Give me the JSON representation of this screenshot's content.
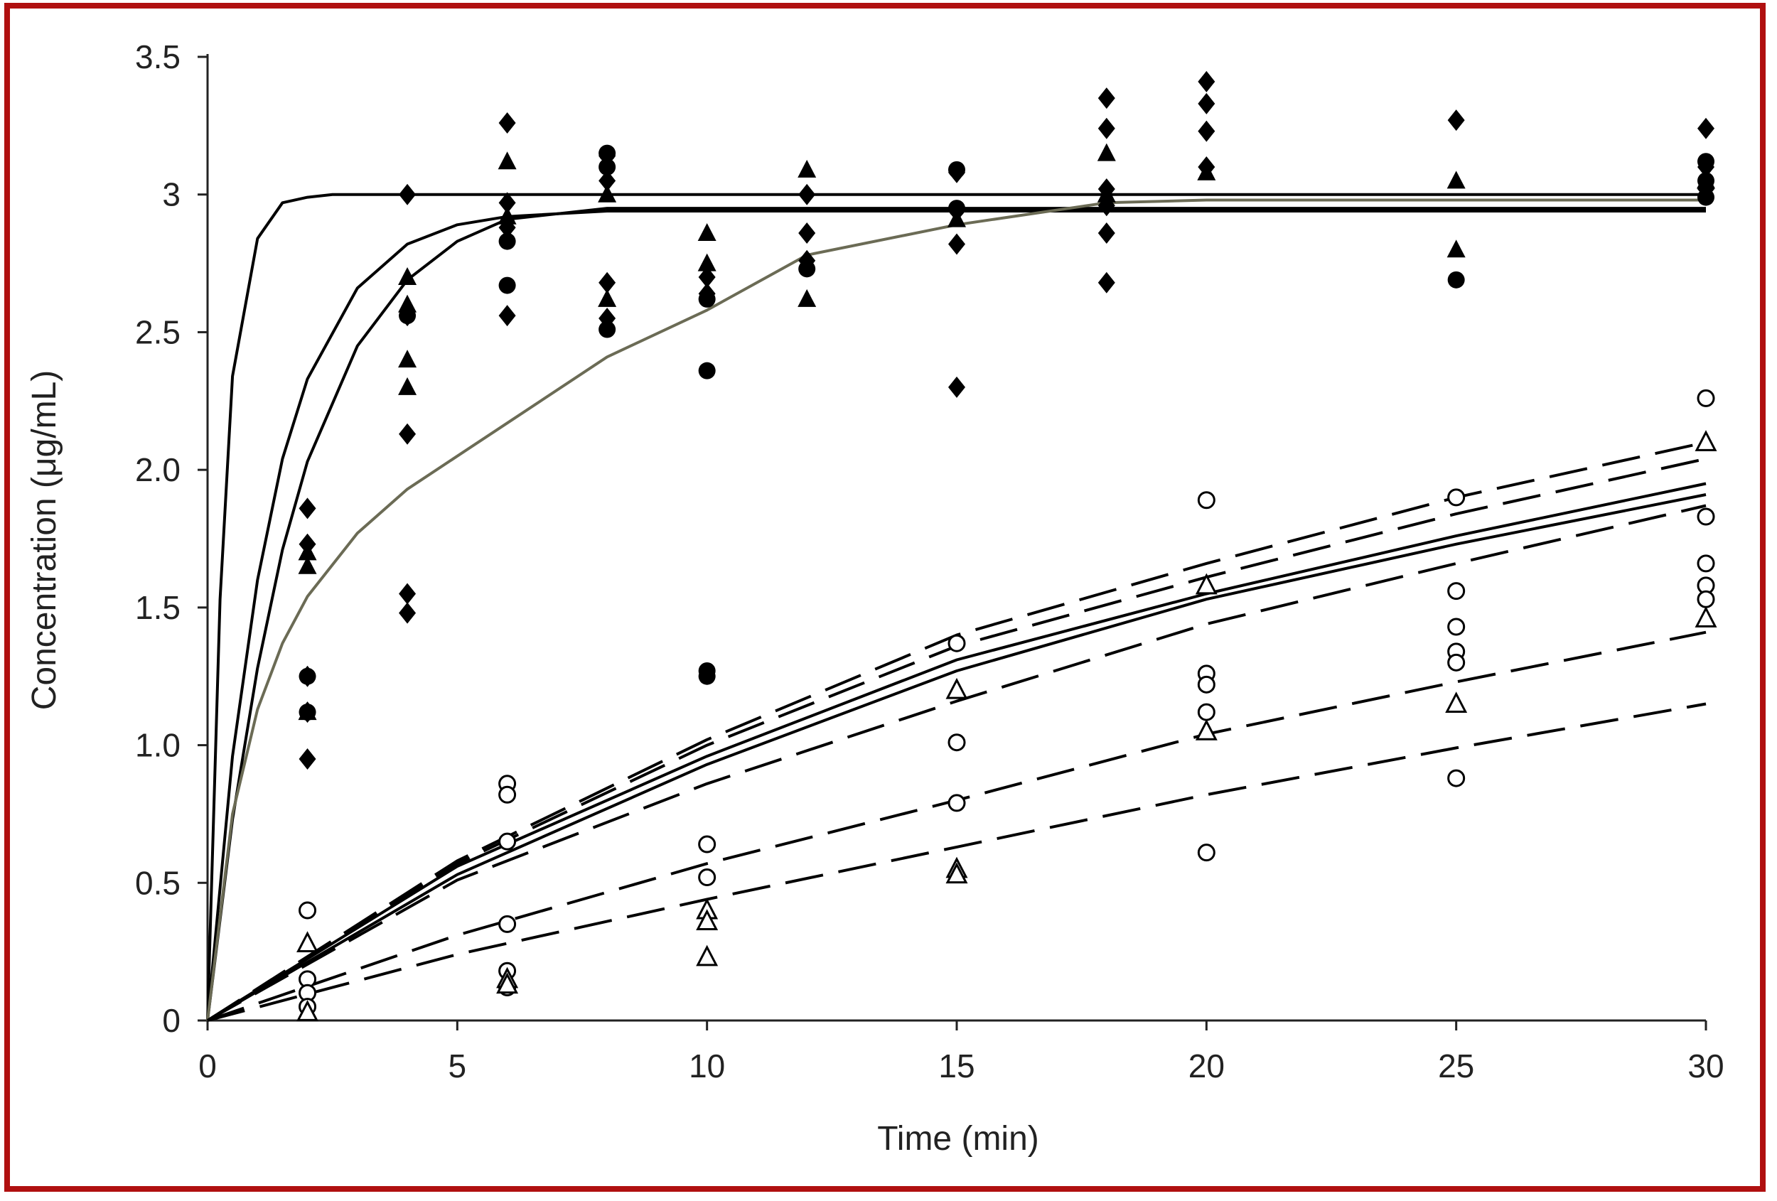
{
  "colors": {
    "frame_border": "#b01010",
    "axis": "#222222",
    "ink": "#000000",
    "slow_curve": "#6b6b55"
  },
  "chart_data": {
    "type": "scatter",
    "title": "",
    "xlabel": "Time (min)",
    "ylabel": "Concentration (μg/mL)",
    "xlim": [
      0,
      30
    ],
    "ylim": [
      0,
      3.5
    ],
    "xticks": [
      0,
      5,
      10,
      15,
      20,
      25,
      30
    ],
    "xtick_labels": [
      "0",
      "5",
      "10",
      "15",
      "20",
      "25",
      "30"
    ],
    "yticks": [
      0,
      0.5,
      1.0,
      1.5,
      2.0,
      2.5,
      3,
      3.5
    ],
    "ytick_labels": [
      "0",
      "0.5",
      "1.0",
      "1.5",
      "2.0",
      "2.5",
      "3",
      "3.5"
    ],
    "grid": false,
    "legend": "none",
    "fitted_curves": [
      {
        "style": "solid",
        "color": "#000000",
        "x": [
          0,
          0.25,
          0.5,
          1,
          1.5,
          2,
          2.5,
          3,
          4,
          5,
          6,
          8,
          10,
          15,
          20,
          25,
          30
        ],
        "y": [
          0,
          1.53,
          2.34,
          2.84,
          2.97,
          2.99,
          3.0,
          3.0,
          3.0,
          3.0,
          3.0,
          3.0,
          3.0,
          3.0,
          3.0,
          3.0,
          3.0
        ]
      },
      {
        "style": "solid",
        "color": "#000000",
        "x": [
          0,
          0.5,
          1,
          1.5,
          2,
          3,
          4,
          5,
          6,
          8,
          10,
          15,
          20,
          25,
          30
        ],
        "y": [
          0,
          0.96,
          1.6,
          2.04,
          2.33,
          2.66,
          2.82,
          2.89,
          2.92,
          2.94,
          2.94,
          2.94,
          2.94,
          2.94,
          2.94
        ]
      },
      {
        "style": "solid",
        "color": "#000000",
        "x": [
          0,
          0.5,
          1,
          1.5,
          2,
          3,
          4,
          5,
          6,
          8,
          10,
          15,
          20,
          25,
          30
        ],
        "y": [
          0,
          0.73,
          1.28,
          1.71,
          2.03,
          2.45,
          2.69,
          2.83,
          2.91,
          2.95,
          2.95,
          2.95,
          2.95,
          2.95,
          2.95
        ]
      },
      {
        "style": "solid",
        "color": "#6b6b55",
        "x": [
          0,
          0.5,
          1,
          1.5,
          2,
          3,
          4,
          5,
          6,
          8,
          10,
          12,
          15,
          18,
          20,
          25,
          30
        ],
        "y": [
          0,
          0.75,
          1.13,
          1.37,
          1.54,
          1.77,
          1.93,
          2.05,
          2.17,
          2.41,
          2.58,
          2.78,
          2.89,
          2.97,
          2.98,
          2.98,
          2.98
        ]
      },
      {
        "style": "dashed",
        "color": "#000000",
        "x": [
          0,
          5,
          10,
          15,
          20,
          25,
          30
        ],
        "y": [
          0,
          0.58,
          1.02,
          1.4,
          1.66,
          1.9,
          2.1
        ]
      },
      {
        "style": "dashed",
        "color": "#000000",
        "x": [
          0,
          5,
          10,
          15,
          20,
          25,
          30
        ],
        "y": [
          0,
          0.57,
          1.0,
          1.36,
          1.61,
          1.84,
          2.04
        ]
      },
      {
        "style": "solid",
        "color": "#000000",
        "x": [
          0,
          5,
          10,
          15,
          20,
          25,
          30
        ],
        "y": [
          0,
          0.56,
          0.96,
          1.31,
          1.55,
          1.76,
          1.95
        ]
      },
      {
        "style": "solid",
        "color": "#000000",
        "x": [
          0,
          5,
          10,
          15,
          20,
          25,
          30
        ],
        "y": [
          0,
          0.53,
          0.93,
          1.27,
          1.53,
          1.73,
          1.91
        ]
      },
      {
        "style": "dashed",
        "color": "#000000",
        "x": [
          0,
          5,
          10,
          15,
          20,
          25,
          30
        ],
        "y": [
          0,
          0.51,
          0.86,
          1.16,
          1.44,
          1.66,
          1.87
        ]
      },
      {
        "style": "dashed",
        "color": "#000000",
        "x": [
          0,
          5,
          10,
          15,
          20,
          25,
          30
        ],
        "y": [
          0,
          0.31,
          0.57,
          0.8,
          1.04,
          1.23,
          1.41
        ]
      },
      {
        "style": "dashed",
        "color": "#000000",
        "x": [
          0,
          5,
          10,
          15,
          20,
          25,
          30
        ],
        "y": [
          0,
          0.24,
          0.44,
          0.63,
          0.82,
          0.99,
          1.15
        ]
      }
    ],
    "series": [
      {
        "marker": "filled-diamond",
        "points": [
          [
            2,
            1.86
          ],
          [
            2,
            1.73
          ],
          [
            2,
            1.25
          ],
          [
            2,
            1.12
          ],
          [
            2,
            0.95
          ],
          [
            4,
            3.0
          ],
          [
            4,
            2.56
          ],
          [
            4,
            2.13
          ],
          [
            4,
            1.55
          ],
          [
            4,
            1.48
          ],
          [
            6,
            3.26
          ],
          [
            6,
            2.97
          ],
          [
            6,
            2.88
          ],
          [
            6,
            2.56
          ],
          [
            8,
            3.14
          ],
          [
            8,
            3.05
          ],
          [
            8,
            2.68
          ],
          [
            8,
            2.55
          ],
          [
            10,
            2.7
          ],
          [
            10,
            2.64
          ],
          [
            12,
            3.0
          ],
          [
            12,
            2.86
          ],
          [
            12,
            2.76
          ],
          [
            15,
            3.08
          ],
          [
            15,
            2.94
          ],
          [
            15,
            2.82
          ],
          [
            15,
            2.3
          ],
          [
            18,
            3.35
          ],
          [
            18,
            3.24
          ],
          [
            18,
            3.02
          ],
          [
            18,
            2.96
          ],
          [
            18,
            2.86
          ],
          [
            18,
            2.68
          ],
          [
            20,
            3.41
          ],
          [
            20,
            3.33
          ],
          [
            20,
            3.23
          ],
          [
            20,
            3.1
          ],
          [
            25,
            3.27
          ],
          [
            30,
            3.24
          ],
          [
            30,
            3.1
          ],
          [
            30,
            3.02
          ]
        ]
      },
      {
        "marker": "filled-circle",
        "points": [
          [
            2,
            1.25
          ],
          [
            2,
            1.12
          ],
          [
            4,
            2.56
          ],
          [
            6,
            2.83
          ],
          [
            6,
            2.67
          ],
          [
            8,
            3.15
          ],
          [
            8,
            3.1
          ],
          [
            8,
            2.51
          ],
          [
            10,
            2.62
          ],
          [
            10,
            2.36
          ],
          [
            10,
            1.27
          ],
          [
            10,
            1.25
          ],
          [
            12,
            2.73
          ],
          [
            15,
            3.09
          ],
          [
            15,
            2.95
          ],
          [
            25,
            2.69
          ],
          [
            30,
            3.12
          ],
          [
            30,
            3.05
          ],
          [
            30,
            2.99
          ]
        ]
      },
      {
        "marker": "filled-triangle",
        "points": [
          [
            2,
            1.7
          ],
          [
            2,
            1.65
          ],
          [
            2,
            1.12
          ],
          [
            4,
            2.7
          ],
          [
            4,
            2.6
          ],
          [
            4,
            2.4
          ],
          [
            4,
            2.3
          ],
          [
            6,
            3.12
          ],
          [
            6,
            2.92
          ],
          [
            8,
            3.0
          ],
          [
            8,
            2.62
          ],
          [
            10,
            2.86
          ],
          [
            10,
            2.75
          ],
          [
            12,
            3.09
          ],
          [
            12,
            2.62
          ],
          [
            15,
            2.91
          ],
          [
            18,
            3.15
          ],
          [
            18,
            3.0
          ],
          [
            20,
            3.08
          ],
          [
            25,
            3.05
          ],
          [
            25,
            2.8
          ],
          [
            30,
            3.05
          ]
        ]
      },
      {
        "marker": "open-circle",
        "points": [
          [
            2,
            0.4
          ],
          [
            2,
            0.15
          ],
          [
            2,
            0.1
          ],
          [
            2,
            0.05
          ],
          [
            6,
            0.86
          ],
          [
            6,
            0.82
          ],
          [
            6,
            0.65
          ],
          [
            6,
            0.35
          ],
          [
            6,
            0.18
          ],
          [
            6,
            0.12
          ],
          [
            10,
            0.64
          ],
          [
            10,
            0.52
          ],
          [
            15,
            1.37
          ],
          [
            15,
            1.01
          ],
          [
            15,
            0.79
          ],
          [
            20,
            1.89
          ],
          [
            20,
            1.26
          ],
          [
            20,
            1.22
          ],
          [
            20,
            1.12
          ],
          [
            20,
            0.61
          ],
          [
            25,
            1.9
          ],
          [
            25,
            1.56
          ],
          [
            25,
            1.43
          ],
          [
            25,
            1.34
          ],
          [
            25,
            1.3
          ],
          [
            25,
            0.88
          ],
          [
            30,
            2.26
          ],
          [
            30,
            1.83
          ],
          [
            30,
            1.66
          ],
          [
            30,
            1.58
          ],
          [
            30,
            1.53
          ]
        ]
      },
      {
        "marker": "open-triangle",
        "points": [
          [
            2,
            0.28
          ],
          [
            2,
            0.03
          ],
          [
            6,
            0.15
          ],
          [
            6,
            0.13
          ],
          [
            10,
            0.4
          ],
          [
            10,
            0.36
          ],
          [
            10,
            0.23
          ],
          [
            15,
            1.2
          ],
          [
            15,
            0.55
          ],
          [
            15,
            0.53
          ],
          [
            20,
            1.58
          ],
          [
            20,
            1.05
          ],
          [
            25,
            1.15
          ],
          [
            30,
            2.1
          ],
          [
            30,
            1.46
          ]
        ]
      }
    ]
  }
}
